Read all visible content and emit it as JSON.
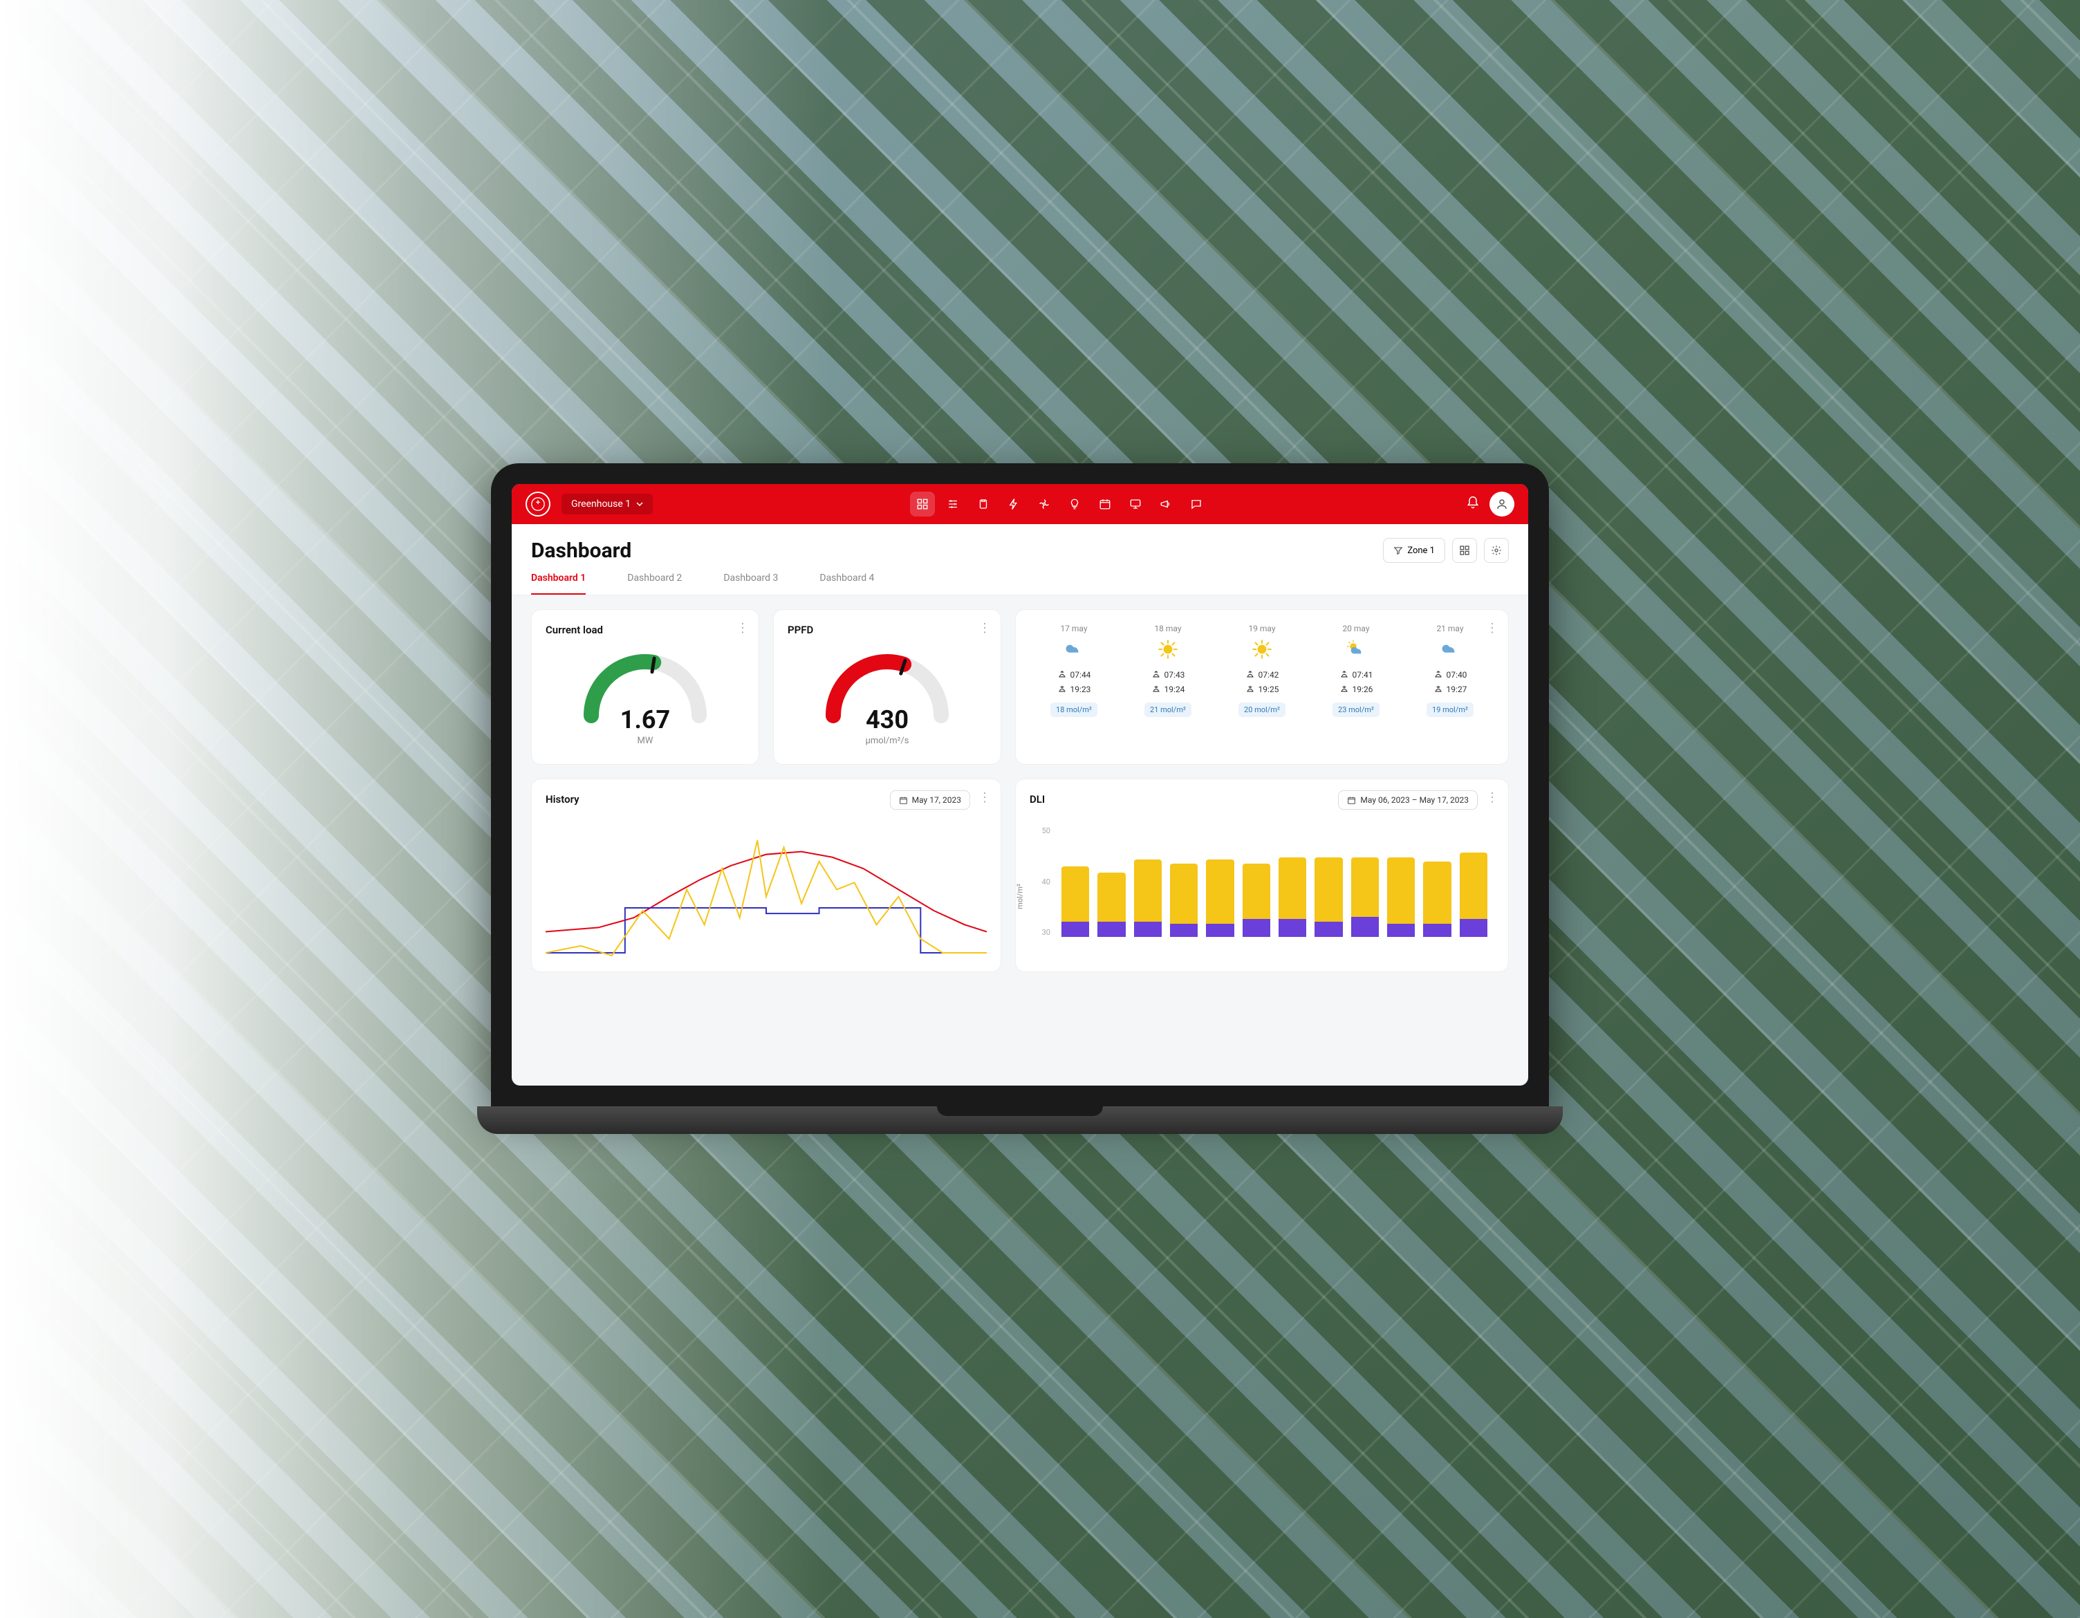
{
  "topbar": {
    "greenhouse_label": "Greenhouse 1",
    "nav_icons": [
      "grid",
      "sliders",
      "clipboard",
      "bolt",
      "fan",
      "bulb",
      "calendar",
      "screen",
      "megaphone",
      "chat"
    ],
    "active_nav_index": 0
  },
  "header": {
    "title": "Dashboard",
    "zone_label": "Zone 1"
  },
  "tabs": [
    {
      "label": "Dashboard 1",
      "active": true
    },
    {
      "label": "Dashboard 2",
      "active": false
    },
    {
      "label": "Dashboard 3",
      "active": false
    },
    {
      "label": "Dashboard 4",
      "active": false
    }
  ],
  "current_load": {
    "title": "Current load",
    "value": "1.67",
    "unit": "MW",
    "gauge": {
      "fill_pct": 55,
      "color": "#2e9e4a",
      "track_color": "#e8e8e8",
      "needle_color": "#111"
    }
  },
  "ppfd": {
    "title": "PPFD",
    "value": "430",
    "unit": "μmol/m²/s",
    "gauge": {
      "fill_pct": 60,
      "color": "#e30613",
      "track_color": "#e8e8e8",
      "needle_color": "#111"
    }
  },
  "weather": {
    "days": [
      {
        "date": "17 may",
        "icon": "cloud",
        "sunrise": "07:44",
        "sunset": "19:23",
        "mol": "18 mol/m²"
      },
      {
        "date": "18 may",
        "icon": "sun",
        "sunrise": "07:43",
        "sunset": "19:24",
        "mol": "21 mol/m²"
      },
      {
        "date": "19 may",
        "icon": "sun",
        "sunrise": "07:42",
        "sunset": "19:25",
        "mol": "20 mol/m²"
      },
      {
        "date": "20 may",
        "icon": "partly",
        "sunrise": "07:41",
        "sunset": "19:26",
        "mol": "23 mol/m²"
      },
      {
        "date": "21 may",
        "icon": "cloud",
        "sunrise": "07:40",
        "sunset": "19:27",
        "mol": "19 mol/m²"
      }
    ]
  },
  "history": {
    "title": "History",
    "date_label": "May 17, 2023",
    "chart": {
      "type": "line",
      "xrange": [
        0,
        100
      ],
      "yrange": [
        0,
        100
      ],
      "series": [
        {
          "color": "#e30613",
          "width": 2,
          "points": [
            [
              0,
              25
            ],
            [
              12,
              28
            ],
            [
              20,
              35
            ],
            [
              28,
              50
            ],
            [
              35,
              62
            ],
            [
              42,
              72
            ],
            [
              50,
              80
            ],
            [
              58,
              82
            ],
            [
              65,
              78
            ],
            [
              72,
              70
            ],
            [
              80,
              55
            ],
            [
              88,
              40
            ],
            [
              95,
              30
            ],
            [
              100,
              25
            ]
          ]
        },
        {
          "color": "#3030c0",
          "width": 2,
          "points": [
            [
              0,
              10
            ],
            [
              18,
              10
            ],
            [
              18,
              42
            ],
            [
              50,
              42
            ],
            [
              50,
              38
            ],
            [
              62,
              38
            ],
            [
              62,
              42
            ],
            [
              85,
              42
            ],
            [
              85,
              10
            ],
            [
              100,
              10
            ]
          ]
        },
        {
          "color": "#f5c518",
          "width": 2,
          "points": [
            [
              0,
              10
            ],
            [
              8,
              15
            ],
            [
              15,
              8
            ],
            [
              22,
              40
            ],
            [
              28,
              20
            ],
            [
              32,
              55
            ],
            [
              36,
              30
            ],
            [
              40,
              70
            ],
            [
              44,
              35
            ],
            [
              48,
              90
            ],
            [
              50,
              50
            ],
            [
              54,
              85
            ],
            [
              58,
              45
            ],
            [
              62,
              75
            ],
            [
              66,
              55
            ],
            [
              70,
              60
            ],
            [
              75,
              30
            ],
            [
              80,
              50
            ],
            [
              85,
              20
            ],
            [
              90,
              10
            ],
            [
              100,
              10
            ]
          ]
        }
      ]
    }
  },
  "dli": {
    "title": "DLI",
    "date_label": "May 06, 2023 – May 17, 2023",
    "chart": {
      "type": "stacked-bar",
      "ylabel": "mol/m²",
      "ylim": [
        0,
        50
      ],
      "yticks": [
        50,
        40,
        30
      ],
      "colors": {
        "top": "#f5c518",
        "bottom": "#6b3fd9"
      },
      "bars": [
        {
          "top": 25,
          "bottom": 7
        },
        {
          "top": 22,
          "bottom": 7
        },
        {
          "top": 28,
          "bottom": 7
        },
        {
          "top": 27,
          "bottom": 6
        },
        {
          "top": 29,
          "bottom": 6
        },
        {
          "top": 25,
          "bottom": 8
        },
        {
          "top": 28,
          "bottom": 8
        },
        {
          "top": 29,
          "bottom": 7
        },
        {
          "top": 27,
          "bottom": 9
        },
        {
          "top": 30,
          "bottom": 6
        },
        {
          "top": 28,
          "bottom": 6
        },
        {
          "top": 30,
          "bottom": 8
        }
      ]
    }
  },
  "colors": {
    "brand": "#e30613",
    "bg": "#f5f6f8"
  }
}
